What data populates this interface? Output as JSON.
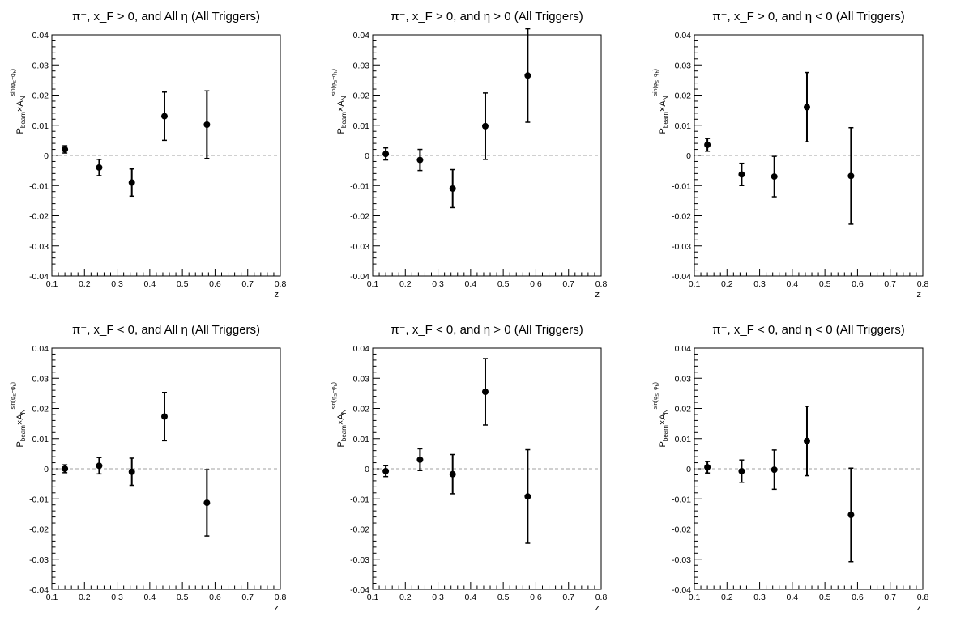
{
  "chart_data": [
    {
      "type": "scatter",
      "title": "π⁻, x_F > 0, and All η (All Triggers)",
      "xlabel": "z",
      "ylabel": "P_beam × A_N^{sin(φ_S − φ_h)}",
      "xlim": [
        0.1,
        0.8
      ],
      "ylim": [
        -0.04,
        0.04
      ],
      "x_ticks": [
        "0.1",
        "0.2",
        "0.3",
        "0.4",
        "0.5",
        "0.6",
        "0.7",
        "0.8"
      ],
      "y_ticks": [
        "-0.04",
        "-0.03",
        "-0.02",
        "-0.01",
        "0",
        "0.01",
        "0.02",
        "0.03",
        "0.04"
      ],
      "reference_line": 0,
      "points": [
        {
          "x": 0.14,
          "y": 0.002,
          "err": 0.0012
        },
        {
          "x": 0.245,
          "y": -0.004,
          "err": 0.0027
        },
        {
          "x": 0.345,
          "y": -0.009,
          "err": 0.0045
        },
        {
          "x": 0.445,
          "y": 0.013,
          "err": 0.008
        },
        {
          "x": 0.575,
          "y": 0.0102,
          "err": 0.0112
        }
      ]
    },
    {
      "type": "scatter",
      "title": "π⁻, x_F > 0, and η > 0 (All Triggers)",
      "xlabel": "z",
      "ylabel": "P_beam × A_N^{sin(φ_S − φ_h)}",
      "xlim": [
        0.1,
        0.8
      ],
      "ylim": [
        -0.04,
        0.04
      ],
      "x_ticks": [
        "0.1",
        "0.2",
        "0.3",
        "0.4",
        "0.5",
        "0.6",
        "0.7",
        "0.8"
      ],
      "y_ticks": [
        "-0.04",
        "-0.03",
        "-0.02",
        "-0.01",
        "0",
        "0.01",
        "0.02",
        "0.03",
        "0.04"
      ],
      "reference_line": 0,
      "points": [
        {
          "x": 0.14,
          "y": 0.0005,
          "err": 0.002
        },
        {
          "x": 0.245,
          "y": -0.0015,
          "err": 0.0035
        },
        {
          "x": 0.345,
          "y": -0.011,
          "err": 0.0063
        },
        {
          "x": 0.445,
          "y": 0.0097,
          "err": 0.011
        },
        {
          "x": 0.575,
          "y": 0.0265,
          "err": 0.0155
        }
      ]
    },
    {
      "type": "scatter",
      "title": "π⁻, x_F > 0, and η < 0 (All Triggers)",
      "xlabel": "z",
      "ylabel": "P_beam × A_N^{sin(φ_S − φ_h)}",
      "xlim": [
        0.1,
        0.8
      ],
      "ylim": [
        -0.04,
        0.04
      ],
      "x_ticks": [
        "0.1",
        "0.2",
        "0.3",
        "0.4",
        "0.5",
        "0.6",
        "0.7",
        "0.8"
      ],
      "y_ticks": [
        "-0.04",
        "-0.03",
        "-0.02",
        "-0.01",
        "0",
        "0.01",
        "0.02",
        "0.03",
        "0.04"
      ],
      "reference_line": 0,
      "points": [
        {
          "x": 0.14,
          "y": 0.0035,
          "err": 0.0021
        },
        {
          "x": 0.245,
          "y": -0.0063,
          "err": 0.0037
        },
        {
          "x": 0.345,
          "y": -0.007,
          "err": 0.0067
        },
        {
          "x": 0.445,
          "y": 0.016,
          "err": 0.0115
        },
        {
          "x": 0.58,
          "y": -0.0068,
          "err": 0.016
        }
      ]
    },
    {
      "type": "scatter",
      "title": "π⁻, x_F < 0, and All η (All Triggers)",
      "xlabel": "z",
      "ylabel": "P_beam × A_N^{sin(φ_S − φ_h)}",
      "xlim": [
        0.1,
        0.8
      ],
      "ylim": [
        -0.04,
        0.04
      ],
      "x_ticks": [
        "0.1",
        "0.2",
        "0.3",
        "0.4",
        "0.5",
        "0.6",
        "0.7",
        "0.8"
      ],
      "y_ticks": [
        "-0.04",
        "-0.03",
        "-0.02",
        "-0.01",
        "0",
        "0.01",
        "0.02",
        "0.03",
        "0.04"
      ],
      "reference_line": 0,
      "points": [
        {
          "x": 0.14,
          "y": 0.0,
          "err": 0.0013
        },
        {
          "x": 0.245,
          "y": 0.001,
          "err": 0.0027
        },
        {
          "x": 0.345,
          "y": -0.001,
          "err": 0.0045
        },
        {
          "x": 0.445,
          "y": 0.0173,
          "err": 0.008
        },
        {
          "x": 0.575,
          "y": -0.0113,
          "err": 0.011
        }
      ]
    },
    {
      "type": "scatter",
      "title": "π⁻, x_F < 0, and η > 0 (All Triggers)",
      "xlabel": "z",
      "ylabel": "P_beam × A_N^{sin(φ_S − φ_h)}",
      "xlim": [
        0.1,
        0.8
      ],
      "ylim": [
        -0.04,
        0.04
      ],
      "x_ticks": [
        "0.1",
        "0.2",
        "0.3",
        "0.4",
        "0.5",
        "0.6",
        "0.7",
        "0.8"
      ],
      "y_ticks": [
        "-0.04",
        "-0.03",
        "-0.02",
        "-0.01",
        "0",
        "0.01",
        "0.02",
        "0.03",
        "0.04"
      ],
      "reference_line": 0,
      "points": [
        {
          "x": 0.14,
          "y": -0.0008,
          "err": 0.0018
        },
        {
          "x": 0.245,
          "y": 0.003,
          "err": 0.0036
        },
        {
          "x": 0.345,
          "y": -0.0018,
          "err": 0.0065
        },
        {
          "x": 0.445,
          "y": 0.0255,
          "err": 0.011
        },
        {
          "x": 0.575,
          "y": -0.0092,
          "err": 0.0155
        }
      ]
    },
    {
      "type": "scatter",
      "title": "π⁻, x_F < 0, and η < 0 (All Triggers)",
      "xlabel": "z",
      "ylabel": "P_beam × A_N^{sin(φ_S − φ_h)}",
      "xlim": [
        0.1,
        0.8
      ],
      "ylim": [
        -0.04,
        0.04
      ],
      "x_ticks": [
        "0.1",
        "0.2",
        "0.3",
        "0.4",
        "0.5",
        "0.6",
        "0.7",
        "0.8"
      ],
      "y_ticks": [
        "-0.04",
        "-0.03",
        "-0.02",
        "-0.01",
        "0",
        "0.01",
        "0.02",
        "0.03",
        "0.04"
      ],
      "reference_line": 0,
      "points": [
        {
          "x": 0.14,
          "y": 0.0005,
          "err": 0.0019
        },
        {
          "x": 0.245,
          "y": -0.0008,
          "err": 0.0037
        },
        {
          "x": 0.345,
          "y": -0.0003,
          "err": 0.0065
        },
        {
          "x": 0.445,
          "y": 0.0092,
          "err": 0.0115
        },
        {
          "x": 0.58,
          "y": -0.0153,
          "err": 0.0155
        }
      ]
    }
  ]
}
